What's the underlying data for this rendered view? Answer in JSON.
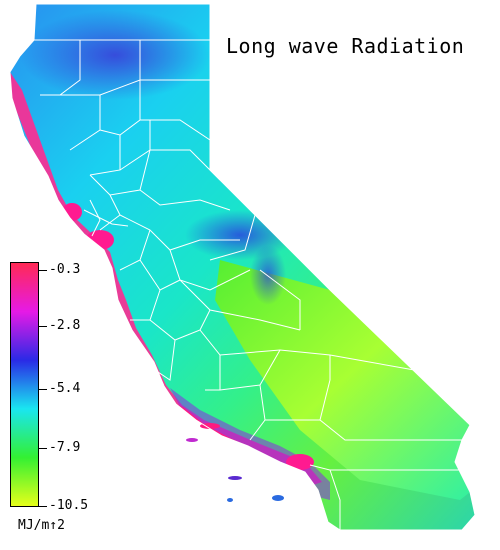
{
  "map": {
    "title": "Long wave Radiation",
    "units": "MJ/m↑2",
    "legend": {
      "ticks": [
        "-0.3",
        "-2.8",
        "-5.4",
        "-7.9",
        "-10.5"
      ],
      "colors": [
        "#ff2a55",
        "#e61ae6",
        "#2a2ae6",
        "#1ae6f0",
        "#33f033",
        "#e6ff1a"
      ]
    },
    "colors": {
      "county_lines": "#ffffff",
      "background": "#ffffff"
    }
  }
}
